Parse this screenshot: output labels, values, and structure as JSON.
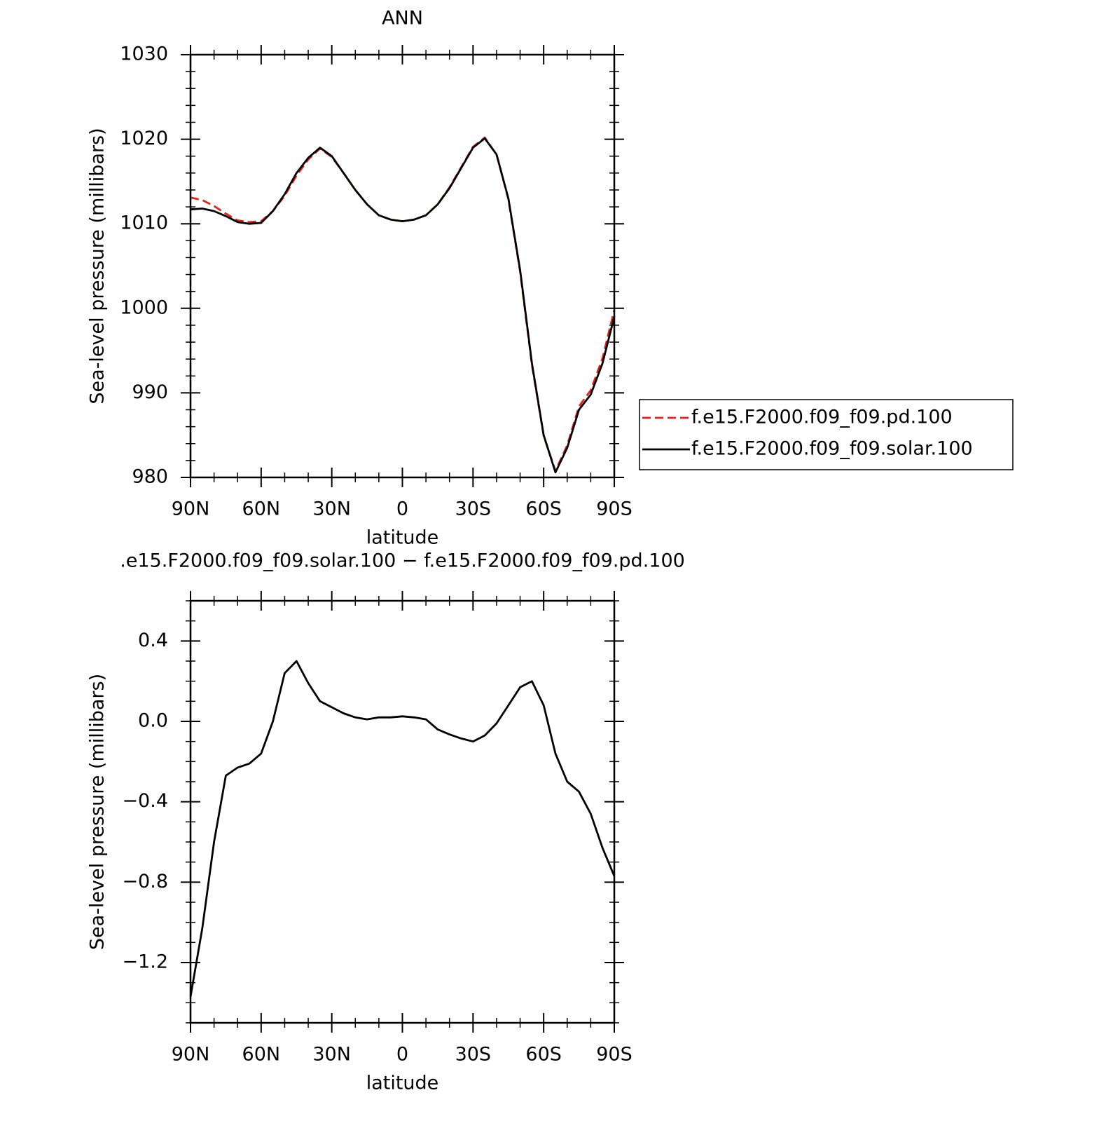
{
  "chart_data": [
    {
      "type": "line",
      "title": "ANN",
      "xlabel": "latitude",
      "ylabel": "Sea-level pressure (millibars)",
      "x": [
        90,
        85,
        80,
        75,
        70,
        65,
        60,
        55,
        50,
        45,
        40,
        35,
        30,
        25,
        20,
        15,
        10,
        5,
        0,
        -5,
        -10,
        -15,
        -20,
        -25,
        -30,
        -35,
        -40,
        -45,
        -50,
        -55,
        -60,
        -65,
        -70,
        -75,
        -80,
        -85,
        -90
      ],
      "series": [
        {
          "name": "f.e15.F2000.f09_f09.pd.100",
          "color": "#e8201c",
          "dash": true,
          "values": [
            1013.1,
            1012.8,
            1012.1,
            1011.2,
            1010.4,
            1010.2,
            1010.3,
            1011.5,
            1013.3,
            1015.7,
            1017.6,
            1018.9,
            1017.9,
            1016.0,
            1014.0,
            1012.3,
            1011.0,
            1010.5,
            1010.3,
            1010.5,
            1011.0,
            1012.3,
            1014.3,
            1016.7,
            1019.1,
            1020.2,
            1018.2,
            1012.9,
            1004.3,
            993.3,
            984.9,
            980.8,
            983.8,
            988.4,
            990.3,
            994.1,
            999.8
          ]
        },
        {
          "name": "f.e15.F2000.f09_f09.solar.100",
          "color": "#000000",
          "dash": false,
          "values": [
            1011.7,
            1011.8,
            1011.5,
            1010.9,
            1010.2,
            1010.0,
            1010.1,
            1011.5,
            1013.5,
            1016.0,
            1017.8,
            1019.0,
            1018.0,
            1016.0,
            1014.0,
            1012.3,
            1011.0,
            1010.5,
            1010.3,
            1010.5,
            1011.0,
            1012.3,
            1014.2,
            1016.6,
            1019.0,
            1020.1,
            1018.2,
            1013.0,
            1004.5,
            993.5,
            985.0,
            980.6,
            983.5,
            988.0,
            989.8,
            993.5,
            999.0
          ]
        }
      ],
      "xlim": [
        90,
        -90
      ],
      "xticks": [
        {
          "value": 90,
          "label": "90N"
        },
        {
          "value": 60,
          "label": "60N"
        },
        {
          "value": 30,
          "label": "30N"
        },
        0,
        {
          "value": -30,
          "label": "30S"
        },
        {
          "value": -60,
          "label": "60S"
        },
        {
          "value": -90,
          "label": "90S"
        }
      ],
      "ylim": [
        980,
        1030
      ],
      "yticks": [
        980,
        990,
        1000,
        1010,
        1020,
        1030
      ],
      "legend": "right"
    },
    {
      "type": "line",
      "title": ".e15.F2000.f09_f09.solar.100 − f.e15.F2000.f09_f09.pd.100",
      "xlabel": "latitude",
      "ylabel": "Sea-level pressure (millibars)",
      "x": [
        90,
        85,
        80,
        75,
        70,
        65,
        60,
        55,
        50,
        45,
        40,
        35,
        30,
        25,
        20,
        15,
        10,
        5,
        0,
        -5,
        -10,
        -15,
        -20,
        -25,
        -30,
        -35,
        -40,
        -45,
        -50,
        -55,
        -60,
        -65,
        -70,
        -75,
        -80,
        -85,
        -90
      ],
      "values": [
        -1.37,
        -1.03,
        -0.6,
        -0.27,
        -0.23,
        -0.21,
        -0.16,
        0.0,
        0.24,
        0.3,
        0.19,
        0.1,
        0.07,
        0.04,
        0.02,
        0.01,
        0.02,
        0.02,
        0.025,
        0.02,
        0.01,
        -0.04,
        -0.065,
        -0.085,
        -0.1,
        -0.07,
        -0.01,
        0.08,
        0.17,
        0.2,
        0.08,
        -0.16,
        -0.3,
        -0.35,
        -0.46,
        -0.63,
        -0.77
      ],
      "color": "#000000",
      "xlim": [
        90,
        -90
      ],
      "xticks": [
        {
          "value": 90,
          "label": "90N"
        },
        {
          "value": 60,
          "label": "60N"
        },
        {
          "value": 30,
          "label": "30N"
        },
        0,
        {
          "value": -30,
          "label": "30S"
        },
        {
          "value": -60,
          "label": "60S"
        },
        {
          "value": -90,
          "label": "90S"
        }
      ],
      "ylim": [
        -1.5,
        0.6
      ],
      "yticks": [
        {
          "value": -1.2,
          "label": "−1.2"
        },
        {
          "value": -0.8,
          "label": "−0.8"
        },
        {
          "value": -0.4,
          "label": "−0.4"
        },
        {
          "value": 0,
          "label": "0.0"
        },
        0.4
      ]
    }
  ]
}
